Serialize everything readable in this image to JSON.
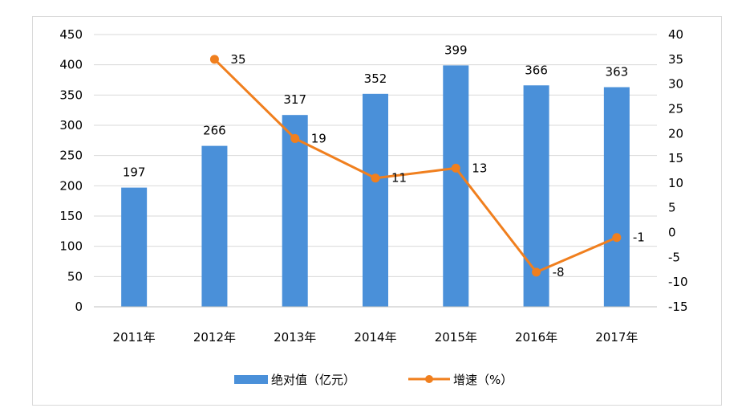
{
  "chart_data": {
    "type": "bar",
    "categories": [
      "2011年",
      "2012年",
      "2013年",
      "2014年",
      "2015年",
      "2016年",
      "2017年"
    ],
    "series": [
      {
        "name": "绝对值（亿元）",
        "type": "bar",
        "axis": "left",
        "color": "#4a90d9",
        "values": [
          197,
          266,
          317,
          352,
          399,
          366,
          363
        ],
        "data_labels": [
          "197",
          "266",
          "317",
          "352",
          "399",
          "366",
          "363"
        ]
      },
      {
        "name": "增速（%）",
        "type": "line",
        "axis": "right",
        "color": "#f07f1e",
        "values": [
          null,
          35,
          19,
          11,
          13,
          -8,
          -1
        ],
        "data_labels": [
          "",
          "35",
          "19",
          "11",
          "13",
          "-8",
          "-1"
        ]
      }
    ],
    "y_left": {
      "ylim": [
        0,
        450
      ],
      "ticks": [
        "0",
        "50",
        "100",
        "150",
        "200",
        "250",
        "300",
        "350",
        "400",
        "450"
      ]
    },
    "y_right": {
      "ylim": [
        -15,
        40
      ],
      "ticks": [
        "-15",
        "-10",
        "-5",
        "0",
        "5",
        "10",
        "15",
        "20",
        "25",
        "30",
        "35",
        "40"
      ]
    },
    "grid": true,
    "legend_position": "bottom"
  }
}
